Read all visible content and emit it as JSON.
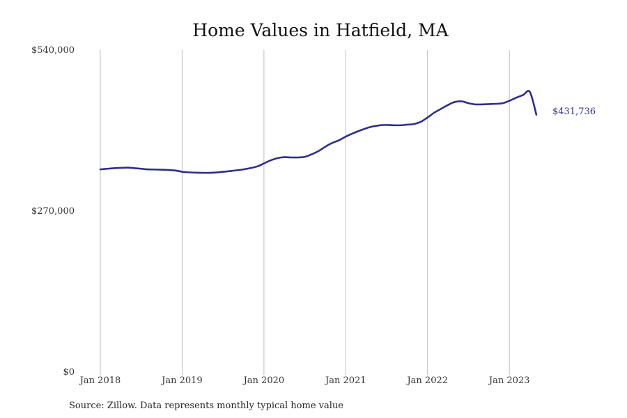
{
  "chart_data": {
    "type": "line",
    "title": "Home Values in Hatfield, MA",
    "xlabel": "",
    "ylabel": "",
    "ylim": [
      0,
      540000
    ],
    "y_ticks": [
      0,
      270000,
      540000
    ],
    "y_tick_labels": [
      "$0",
      "$270,000",
      "$540,000"
    ],
    "x_ticks": [
      2018,
      2019,
      2020,
      2021,
      2022,
      2023
    ],
    "x_tick_labels": [
      "Jan 2018",
      "Jan 2019",
      "Jan 2020",
      "Jan 2021",
      "Jan 2022",
      "Jan 2023"
    ],
    "grid": "vertical",
    "line_color": "#2e2e8a",
    "x_domain": [
      2018,
      2024.08
    ],
    "series": [
      {
        "x": [
          2018.0,
          2018.08,
          2018.17,
          2018.25,
          2018.33,
          2018.42,
          2018.5,
          2018.58,
          2018.67,
          2018.75,
          2018.83,
          2018.92,
          2019.0,
          2019.08,
          2019.17,
          2019.25,
          2019.33,
          2019.42,
          2019.5,
          2019.58,
          2019.67,
          2019.75,
          2019.83,
          2019.92,
          2020.0,
          2020.08,
          2020.17,
          2020.25,
          2020.33,
          2020.42,
          2020.5,
          2020.58,
          2020.67,
          2020.75,
          2020.83,
          2020.92,
          2021.0,
          2021.08,
          2021.17,
          2021.25,
          2021.33,
          2021.42,
          2021.5,
          2021.58,
          2021.67,
          2021.75,
          2021.83,
          2021.92,
          2022.0,
          2022.08,
          2022.17,
          2022.25,
          2022.33,
          2022.42,
          2022.5,
          2022.58,
          2022.67,
          2022.75,
          2022.83,
          2022.92,
          2023.0,
          2023.08,
          2023.17,
          2023.25,
          2023.33
        ],
        "values": [
          340000,
          341000,
          342000,
          342500,
          343000,
          342000,
          341000,
          340000,
          339800,
          339500,
          339000,
          338000,
          336000,
          335000,
          334500,
          334200,
          334200,
          334800,
          336000,
          337000,
          338500,
          340000,
          342000,
          345000,
          350000,
          355000,
          359000,
          360500,
          360000,
          360000,
          361000,
          365000,
          371000,
          378000,
          384000,
          389000,
          395000,
          400000,
          405000,
          409000,
          412000,
          414000,
          414500,
          414000,
          414000,
          415000,
          416000,
          420000,
          427000,
          435000,
          442000,
          448000,
          453000,
          454000,
          451000,
          449000,
          449000,
          449500,
          450000,
          451000,
          455000,
          460000,
          465000,
          470000,
          431736
        ],
        "end_label": "$431,736"
      }
    ],
    "source": "Source: Zillow. Data represents monthly typical home value"
  }
}
